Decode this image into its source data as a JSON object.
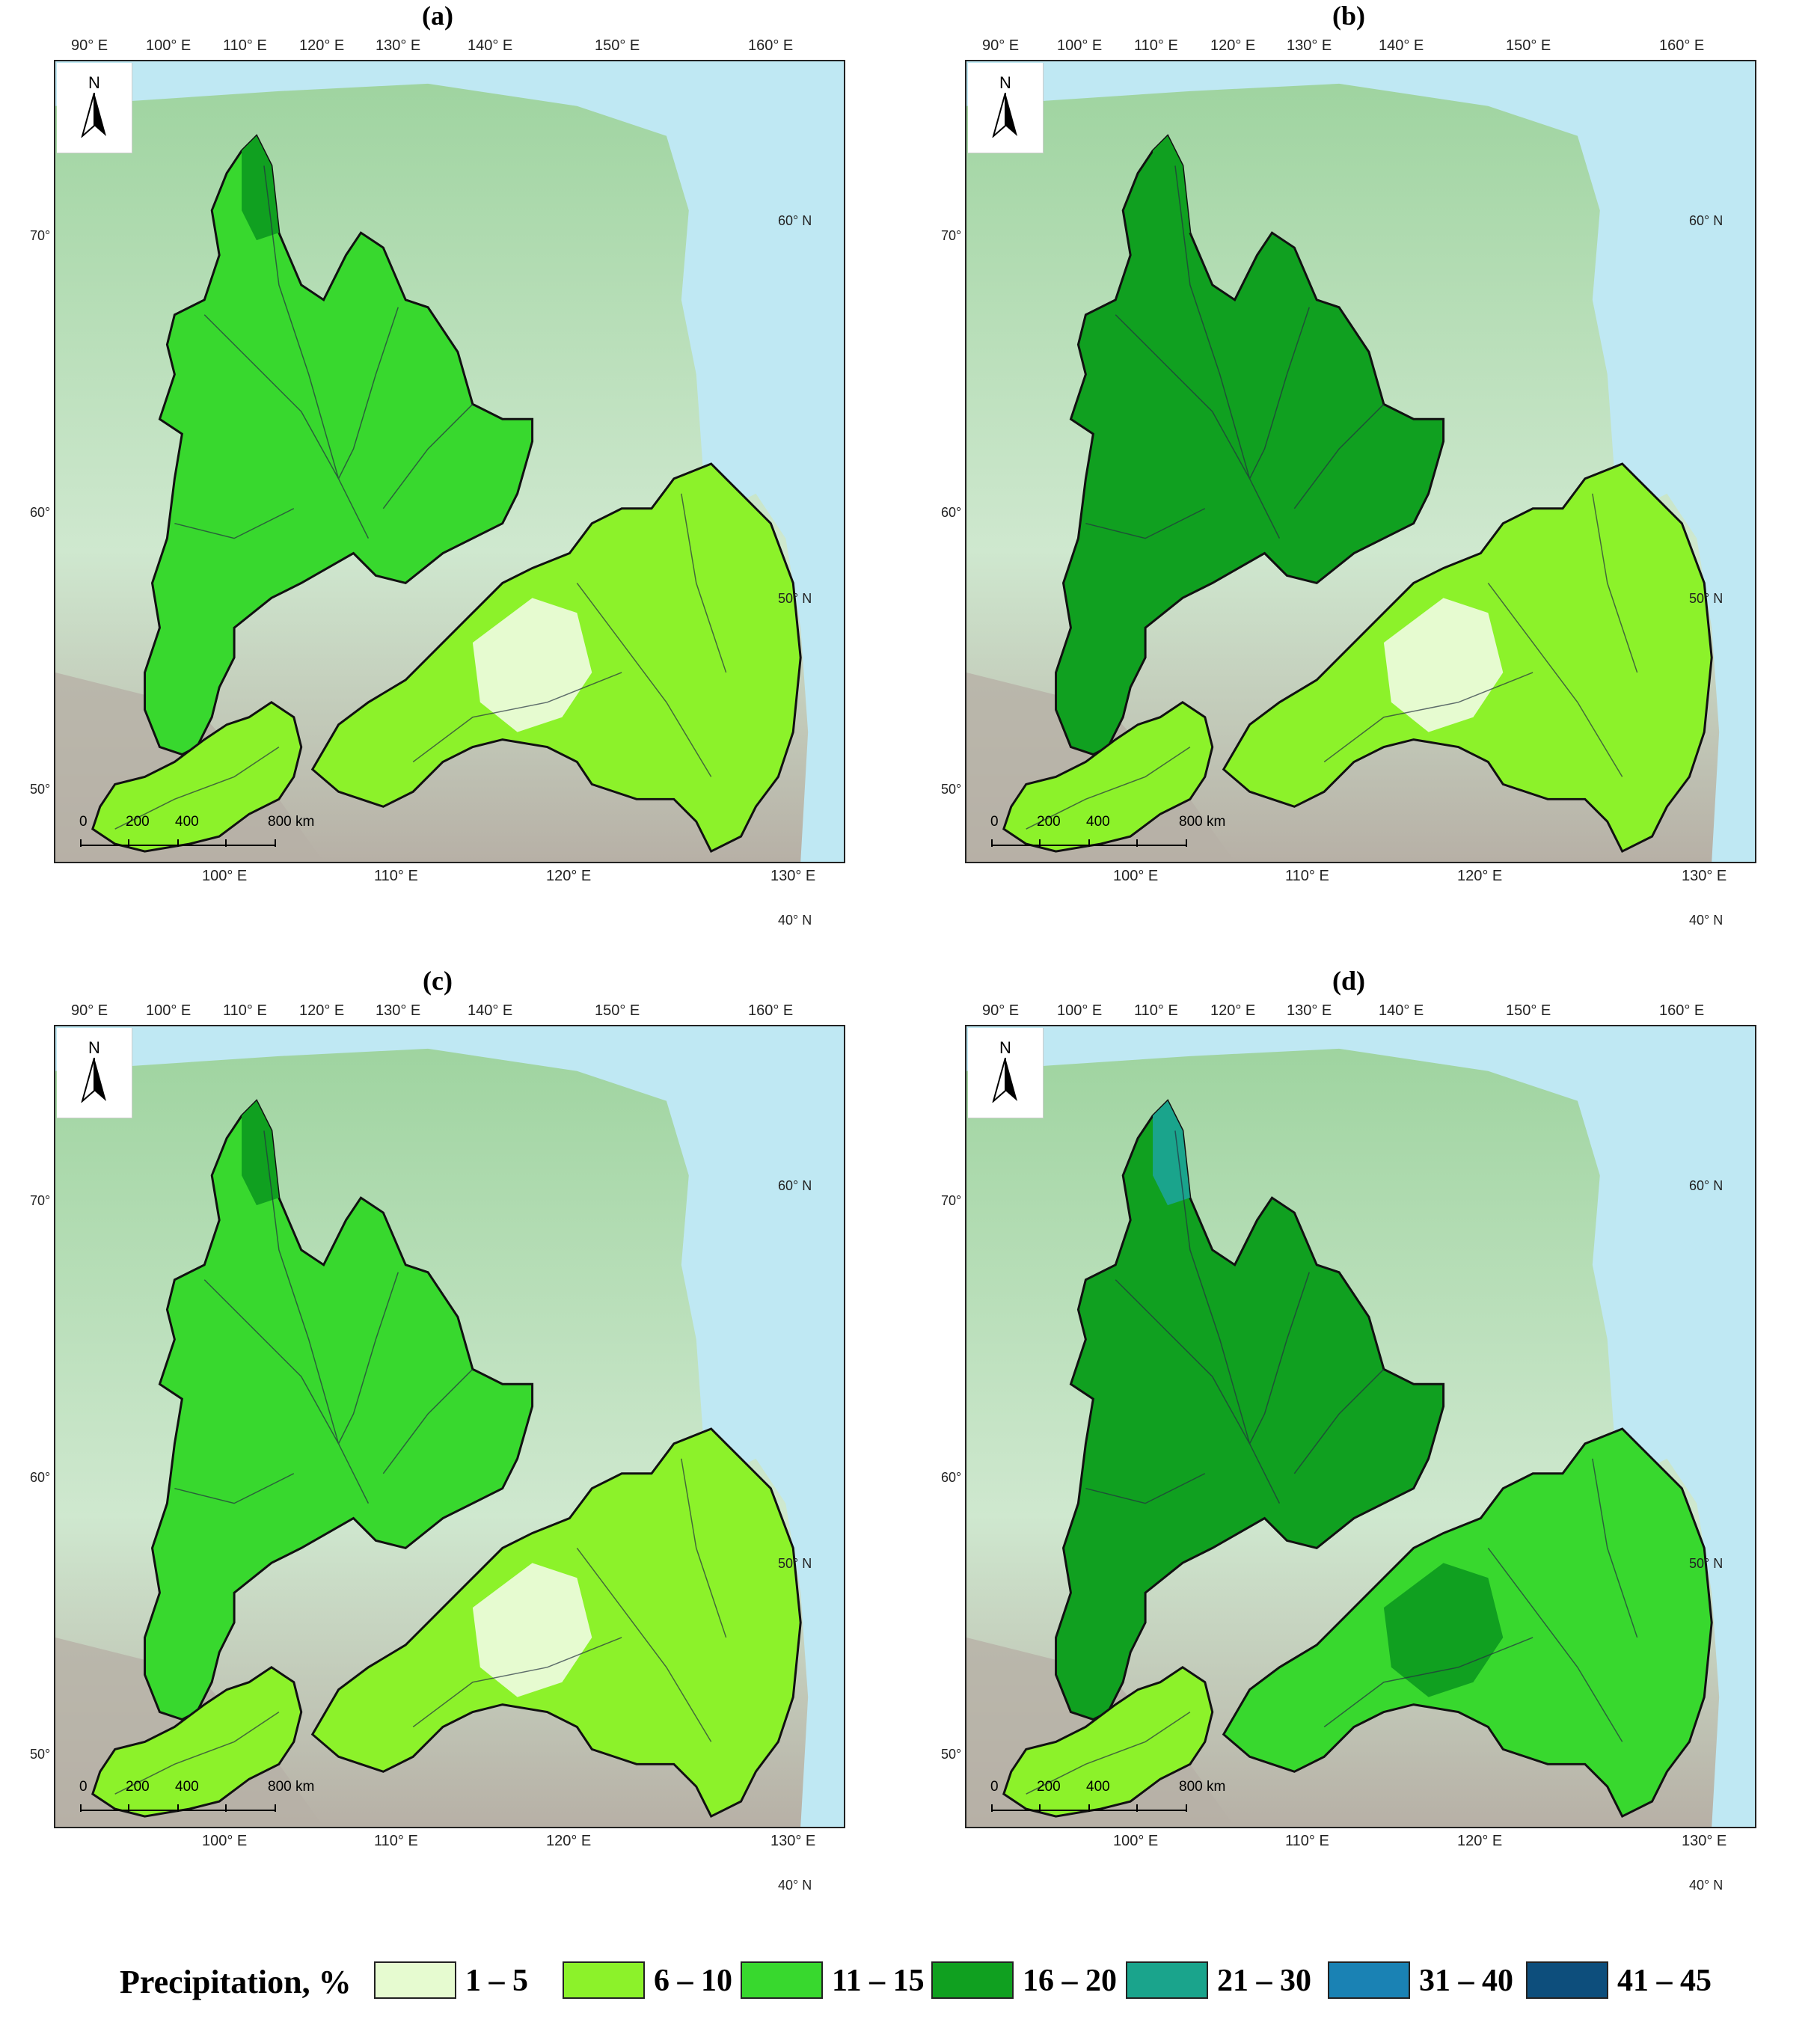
{
  "panels": [
    {
      "label": "(a)"
    },
    {
      "label": "(b)"
    },
    {
      "label": "(c)"
    },
    {
      "label": "(d)"
    }
  ],
  "axes": {
    "top_lon": [
      "90° E",
      "100° E",
      "110° E",
      "120° E",
      "130° E",
      "140° E",
      "150° E",
      "160° E"
    ],
    "bottom_lon": [
      "100° E",
      "110° E",
      "120° E",
      "130° E"
    ],
    "left_lat": [
      "70° N",
      "60° N",
      "50° N"
    ],
    "right_lat": [
      "60° N",
      "50° N",
      "40° N"
    ]
  },
  "north_arrow": {
    "label": "N",
    "icon": "north-arrow-icon"
  },
  "scale_bar": {
    "ticks": [
      "0",
      "200",
      "400",
      "800 km"
    ]
  },
  "legend": {
    "title": "Precipitation, %",
    "classes": [
      {
        "label": "1 – 5",
        "color": "#e6fbd0"
      },
      {
        "label": "6 – 10",
        "color": "#8cf22a"
      },
      {
        "label": "11 – 15",
        "color": "#38d82e"
      },
      {
        "label": "16 – 20",
        "color": "#10a020"
      },
      {
        "label": "21 – 30",
        "color": "#1aa48c"
      },
      {
        "label": "31 – 40",
        "color": "#1a82b4"
      },
      {
        "label": "41 – 45",
        "color": "#0d4e7c"
      }
    ]
  },
  "colors": {
    "sea": "#bfe8f3",
    "land_low": "#cfe8cf",
    "land_mid": "#9fd4a0",
    "land_high": "#b7b0a6",
    "border": "#111111",
    "river": "#243040"
  }
}
